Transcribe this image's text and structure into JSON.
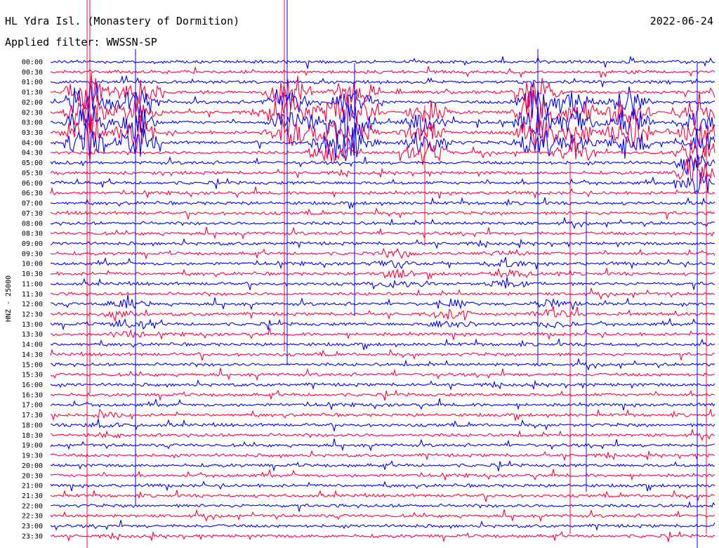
{
  "header": {
    "station": "HL Ydra Isl. (Monastery of Dormition)",
    "date": "2022-06-24",
    "filter": "Applied filter: WWSSN-SP"
  },
  "chart_data": {
    "type": "line",
    "title": "HL Ydra Isl. (Monastery of Dormition)",
    "ylabel": "HNZ - 25000",
    "row_labels": [
      "00:00",
      "00:30",
      "01:00",
      "01:30",
      "02:00",
      "02:30",
      "03:00",
      "03:30",
      "04:00",
      "04:30",
      "05:00",
      "05:30",
      "06:00",
      "06:30",
      "07:00",
      "07:30",
      "08:00",
      "08:30",
      "09:00",
      "09:30",
      "10:00",
      "10:30",
      "11:00",
      "11:30",
      "12:00",
      "12:30",
      "13:00",
      "13:30",
      "14:00",
      "14:30",
      "15:00",
      "15:30",
      "16:00",
      "16:30",
      "17:00",
      "17:30",
      "18:00",
      "18:30",
      "19:00",
      "19:30",
      "20:00",
      "20:30",
      "21:00",
      "21:30",
      "22:00",
      "22:30",
      "23:00",
      "23:30"
    ],
    "series": [
      {
        "color": "#0000ff"
      },
      {
        "color": "#ff0040"
      }
    ],
    "grid": false,
    "legend": "none"
  }
}
